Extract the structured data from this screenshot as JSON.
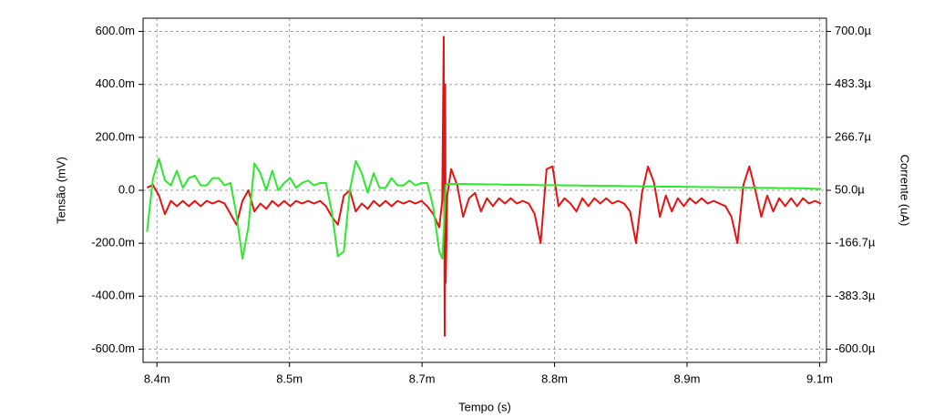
{
  "chart_data": {
    "type": "line",
    "xlabel": "Tempo (s)",
    "ylabel": "Tensão (mV)",
    "y2label": "Corrente (uA)",
    "grid": true,
    "xlim": [
      0.008386,
      0.0090736
    ],
    "xticks": [
      {
        "value": 0.0084,
        "label": "8.4m"
      },
      {
        "value": 0.0085333,
        "label": "8.5m"
      },
      {
        "value": 0.0086667,
        "label": "8.7m"
      },
      {
        "value": 0.0088,
        "label": "8.8m"
      },
      {
        "value": 0.0089333,
        "label": "8.9m"
      },
      {
        "value": 0.0090667,
        "label": "9.1m"
      }
    ],
    "ylim": [
      -0.65,
      0.65
    ],
    "yticks": [
      {
        "value": 0.6,
        "label": "600.0m"
      },
      {
        "value": 0.4,
        "label": "400.0m"
      },
      {
        "value": 0.2,
        "label": "200.0m"
      },
      {
        "value": 0,
        "label": "0.0"
      },
      {
        "value": -0.2,
        "label": "-200.0m"
      },
      {
        "value": -0.4,
        "label": "-400.0m"
      },
      {
        "value": -0.6,
        "label": "-600.0m"
      }
    ],
    "y2lim": [
      -0.000654,
      0.000754
    ],
    "y2ticks": [
      {
        "value": 0.0007,
        "label": "700.0µ"
      },
      {
        "value": 0.0004833,
        "label": "483.3µ"
      },
      {
        "value": 0.0002667,
        "label": "266.7µ"
      },
      {
        "value": 5e-05,
        "label": "50.0µ"
      },
      {
        "value": -0.0001667,
        "label": "-166.7µ"
      },
      {
        "value": -0.0003833,
        "label": "-383.3µ"
      },
      {
        "value": -0.0006,
        "label": "-600.0µ"
      }
    ],
    "x": [
      0.00839,
      0.008396,
      0.008402,
      0.008408,
      0.008414,
      0.00842,
      0.008426,
      0.008432,
      0.008438,
      0.008444,
      0.00845,
      0.008456,
      0.008462,
      0.008468,
      0.008474,
      0.00848,
      0.008486,
      0.008492,
      0.008498,
      0.008504,
      0.00851,
      0.008516,
      0.008522,
      0.008528,
      0.008534,
      0.00854,
      0.008546,
      0.008552,
      0.008558,
      0.008564,
      0.00857,
      0.008576,
      0.008582,
      0.008588,
      0.008594,
      0.0086,
      0.008606,
      0.008612,
      0.008618,
      0.008624,
      0.00863,
      0.008636,
      0.008642,
      0.008648,
      0.008654,
      0.00866,
      0.008666,
      0.008672,
      0.008678,
      0.008684,
      0.008687,
      0.0086885,
      0.0086895,
      0.00869,
      0.0086905,
      0.008692,
      0.008696,
      0.008702,
      0.008708,
      0.008714,
      0.00872,
      0.008726,
      0.008732,
      0.008738,
      0.008744,
      0.00875,
      0.008756,
      0.008762,
      0.008768,
      0.008774,
      0.00878,
      0.008786,
      0.008792,
      0.008798,
      0.008804,
      0.00881,
      0.008816,
      0.008822,
      0.008828,
      0.008834,
      0.00884,
      0.008846,
      0.008852,
      0.008858,
      0.008864,
      0.00887,
      0.008876,
      0.008882,
      0.008888,
      0.008894,
      0.0089,
      0.008906,
      0.008912,
      0.008918,
      0.008924,
      0.00893,
      0.008936,
      0.008942,
      0.008948,
      0.008954,
      0.00896,
      0.008966,
      0.008972,
      0.008978,
      0.008984,
      0.00899,
      0.008996,
      0.009002,
      0.009008,
      0.009014,
      0.00902,
      0.009026,
      0.009032,
      0.009038,
      0.009044,
      0.00905,
      0.009056,
      0.009062,
      0.009068
    ],
    "series": [
      {
        "color": "#e41414",
        "axis": "y",
        "values": [
          0.01,
          0.02,
          -0.02,
          -0.09,
          -0.04,
          -0.06,
          -0.04,
          -0.06,
          -0.04,
          -0.06,
          -0.04,
          -0.05,
          -0.04,
          -0.05,
          -0.09,
          -0.13,
          -0.04,
          0.0,
          -0.08,
          -0.05,
          -0.07,
          -0.04,
          -0.06,
          -0.04,
          -0.06,
          -0.04,
          -0.05,
          -0.04,
          -0.05,
          -0.04,
          -0.06,
          -0.1,
          -0.13,
          -0.02,
          0.0,
          -0.08,
          -0.05,
          -0.07,
          -0.04,
          -0.06,
          -0.04,
          -0.06,
          -0.04,
          -0.05,
          -0.04,
          -0.05,
          -0.04,
          -0.06,
          -0.09,
          -0.14,
          -0.04,
          0.58,
          -0.55,
          0.4,
          -0.35,
          -0.02,
          0.08,
          0.02,
          -0.1,
          -0.03,
          -0.01,
          -0.08,
          -0.03,
          -0.06,
          -0.03,
          -0.05,
          -0.03,
          -0.05,
          -0.04,
          -0.05,
          -0.09,
          -0.2,
          0.08,
          0.09,
          -0.06,
          -0.03,
          -0.05,
          -0.08,
          -0.03,
          -0.06,
          -0.03,
          -0.05,
          -0.03,
          -0.05,
          -0.04,
          -0.05,
          -0.08,
          -0.2,
          -0.01,
          0.09,
          0.03,
          -0.1,
          -0.02,
          -0.08,
          -0.03,
          -0.06,
          -0.03,
          -0.05,
          -0.03,
          -0.05,
          -0.04,
          -0.05,
          -0.06,
          -0.1,
          -0.2,
          0.02,
          0.09,
          0.0,
          -0.1,
          -0.02,
          -0.08,
          -0.03,
          -0.06,
          -0.03,
          -0.06,
          -0.03,
          -0.05,
          -0.04,
          -0.05
        ]
      },
      {
        "color": "#2ee82e",
        "axis": "y2",
        "values": [
          -0.00012,
          0.0001,
          0.00018,
          9e-05,
          7e-05,
          0.00013,
          6e-05,
          0.0001,
          0.00011,
          7e-05,
          7e-05,
          0.0001,
          0.0001,
          7e-05,
          8e-05,
          -5e-05,
          -0.00023,
          -0.0001,
          0.00016,
          0.00012,
          5e-05,
          0.00013,
          5e-05,
          8e-05,
          0.0001,
          6e-05,
          8e-05,
          9e-05,
          7e-05,
          8e-05,
          8e-05,
          -4e-05,
          -0.00022,
          -0.0002,
          5e-05,
          0.00017,
          0.00012,
          4e-05,
          0.00012,
          6e-05,
          6e-05,
          0.0001,
          7e-05,
          7e-05,
          9e-05,
          7e-05,
          8e-05,
          8e-05,
          -2e-05,
          -0.0002,
          -0.00023,
          -0.00012,
          -2e-05,
          4e-05,
          7e-05,
          7.6e-05,
          7.6e-05,
          7.6e-05,
          7.6e-05,
          7.5e-05,
          7.5e-05,
          7.5e-05,
          7.4e-05,
          7.4e-05,
          7.4e-05,
          7.3e-05,
          7.3e-05,
          7.3e-05,
          7.2e-05,
          7.2e-05,
          7.2e-05,
          7.1e-05,
          7.1e-05,
          7.1e-05,
          7.1e-05,
          7e-05,
          7e-05,
          7e-05,
          6.9e-05,
          6.9e-05,
          6.9e-05,
          6.8e-05,
          6.8e-05,
          6.8e-05,
          6.8e-05,
          6.7e-05,
          6.7e-05,
          6.7e-05,
          6.6e-05,
          6.6e-05,
          6.6e-05,
          6.5e-05,
          6.5e-05,
          6.5e-05,
          6.5e-05,
          6.4e-05,
          6.4e-05,
          6.4e-05,
          6.3e-05,
          6.3e-05,
          6.3e-05,
          6.2e-05,
          6.2e-05,
          6.2e-05,
          6.2e-05,
          6.1e-05,
          6.1e-05,
          6.1e-05,
          6e-05,
          6e-05,
          6e-05,
          5.9e-05,
          5.9e-05,
          5.9e-05,
          5.8e-05,
          5.8e-05,
          5.7e-05,
          5.6e-05,
          5.5e-05
        ]
      }
    ]
  }
}
